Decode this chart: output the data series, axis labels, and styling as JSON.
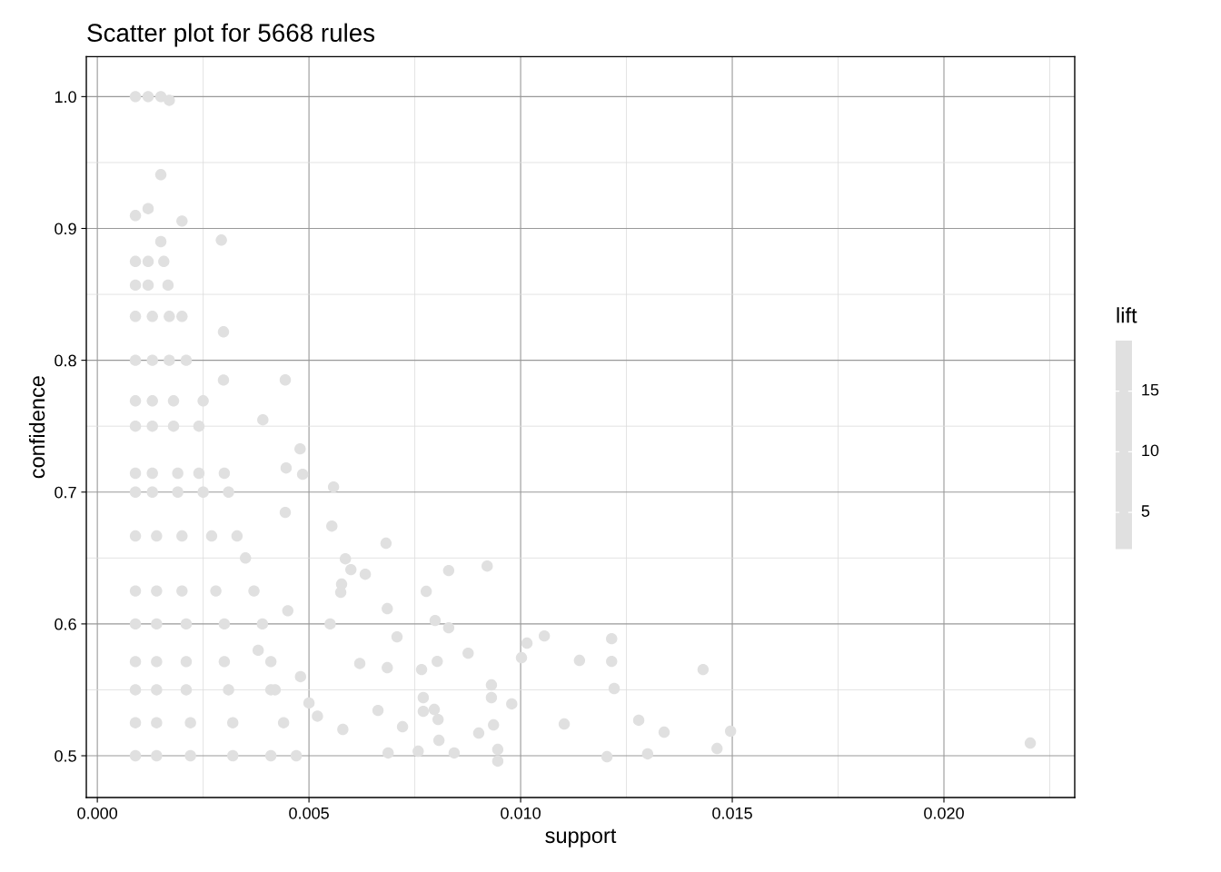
{
  "chart_data": {
    "type": "scatter",
    "title": "Scatter plot for 5668 rules",
    "xlabel": "support",
    "ylabel": "confidence",
    "clabel": "lift",
    "color": "#e0e0e0",
    "marker": "circle",
    "grid": true,
    "annotations": [
      "15",
      "10",
      "5"
    ],
    "xlim": [
      -0.00026,
      0.02309
    ],
    "ylim": [
      0.4683,
      1.0303
    ],
    "xticks": [
      {
        "value": 0,
        "label": "0.000"
      },
      {
        "value": 0.005,
        "label": "0.005"
      },
      {
        "value": 0.01,
        "label": "0.010"
      },
      {
        "value": 0.015,
        "label": "0.015"
      },
      {
        "value": 0.02,
        "label": "0.020"
      }
    ],
    "yticks": [
      0.5,
      0.6,
      0.7,
      0.8,
      0.9,
      {
        "value": 1,
        "label": "1.0"
      }
    ],
    "x": [
      0.0009,
      0.0012,
      0.0015,
      0.0017,
      0.0009,
      0.0012,
      0.0015,
      0.002,
      0.00293,
      0.0015,
      0.0009,
      0.0012,
      0.00157,
      0.0009,
      0.0012,
      0.00167,
      0.0009,
      0.0013,
      0.0017,
      0.002,
      0.0009,
      0.0013,
      0.0017,
      0.0021,
      0.0009,
      0.0013,
      0.0018,
      0.0025,
      0.0009,
      0.0013,
      0.0018,
      0.0024,
      0.0009,
      0.0013,
      0.0019,
      0.0024,
      0.003,
      0.0009,
      0.0013,
      0.0019,
      0.0025,
      0.0031,
      0.0009,
      0.0014,
      0.002,
      0.0027,
      0.0033,
      0.0009,
      0.0014,
      0.002,
      0.0028,
      0.0037,
      0.0009,
      0.0014,
      0.0021,
      0.003,
      0.0039,
      0.0009,
      0.0014,
      0.0021,
      0.003,
      0.0041,
      0.0009,
      0.0014,
      0.0021,
      0.0031,
      0.0041,
      0.0009,
      0.0014,
      0.0022,
      0.0032,
      0.0044,
      0.0009,
      0.0014,
      0.0022,
      0.0032,
      0.0041,
      0.00298,
      0.00298,
      0.00444,
      0.00391,
      0.00479,
      0.00485,
      0.00446,
      0.00444,
      0.00554,
      0.00558,
      0.00633,
      0.00599,
      0.00586,
      0.00577,
      0.00575,
      0.00682,
      0.00685,
      0.00687,
      0.00685,
      0.00663,
      0.00708,
      0.00721,
      0.00758,
      0.0077,
      0.00766,
      0.0077,
      0.00777,
      0.00798,
      0.00803,
      0.0083,
      0.0083,
      0.00796,
      0.00805,
      0.00807,
      0.00843,
      0.00876,
      0.00901,
      0.00936,
      0.00946,
      0.00946,
      0.00921,
      0.00931,
      0.00931,
      0.00979,
      0.01002,
      0.01015,
      0.01056,
      0.01103,
      0.01139,
      0.01204,
      0.01215,
      0.01215,
      0.01221,
      0.01279,
      0.013,
      0.01339,
      0.01431,
      0.01464,
      0.01496,
      0.02204,
      0.0035,
      0.0038,
      0.0045,
      0.0042,
      0.0048,
      0.0052,
      0.0055,
      0.0058,
      0.0062,
      0.005,
      0.0047
    ],
    "values": [
      1.0,
      1.0,
      1.0,
      0.9972,
      0.9098,
      0.915,
      0.9408,
      0.9056,
      0.8912,
      0.89,
      0.875,
      0.875,
      0.875,
      0.857,
      0.857,
      0.857,
      0.8333,
      0.8333,
      0.8333,
      0.8333,
      0.8,
      0.8,
      0.8,
      0.8,
      0.7692,
      0.7692,
      0.7692,
      0.7692,
      0.75,
      0.75,
      0.75,
      0.75,
      0.7143,
      0.7143,
      0.7143,
      0.7143,
      0.7143,
      0.7,
      0.7,
      0.7,
      0.7,
      0.7,
      0.6667,
      0.6667,
      0.6667,
      0.6667,
      0.6667,
      0.625,
      0.625,
      0.625,
      0.625,
      0.625,
      0.6,
      0.6,
      0.6,
      0.6,
      0.6,
      0.5714,
      0.5714,
      0.5714,
      0.5714,
      0.5714,
      0.55,
      0.55,
      0.55,
      0.55,
      0.55,
      0.525,
      0.525,
      0.525,
      0.525,
      0.525,
      0.5,
      0.5,
      0.5,
      0.5,
      0.5,
      0.8216,
      0.785,
      0.7851,
      0.7548,
      0.7328,
      0.7135,
      0.7183,
      0.6846,
      0.6742,
      0.7039,
      0.6377,
      0.6412,
      0.6494,
      0.6302,
      0.624,
      0.6612,
      0.6116,
      0.5021,
      0.5668,
      0.5344,
      0.5902,
      0.522,
      0.5034,
      0.5441,
      0.5654,
      0.5337,
      0.6247,
      0.6026,
      0.5716,
      0.6405,
      0.5971,
      0.5351,
      0.5275,
      0.5117,
      0.5021,
      0.5778,
      0.5172,
      0.5234,
      0.4959,
      0.5048,
      0.6439,
      0.5441,
      0.5537,
      0.5393,
      0.5744,
      0.5854,
      0.5909,
      0.5241,
      0.5723,
      0.4993,
      0.5716,
      0.5888,
      0.551,
      0.5269,
      0.5014,
      0.5179,
      0.5654,
      0.5055,
      0.5186,
      0.5096,
      0.65,
      0.58,
      0.61,
      0.55,
      0.56,
      0.53,
      0.6,
      0.52,
      0.57,
      0.54,
      0.5
    ]
  }
}
